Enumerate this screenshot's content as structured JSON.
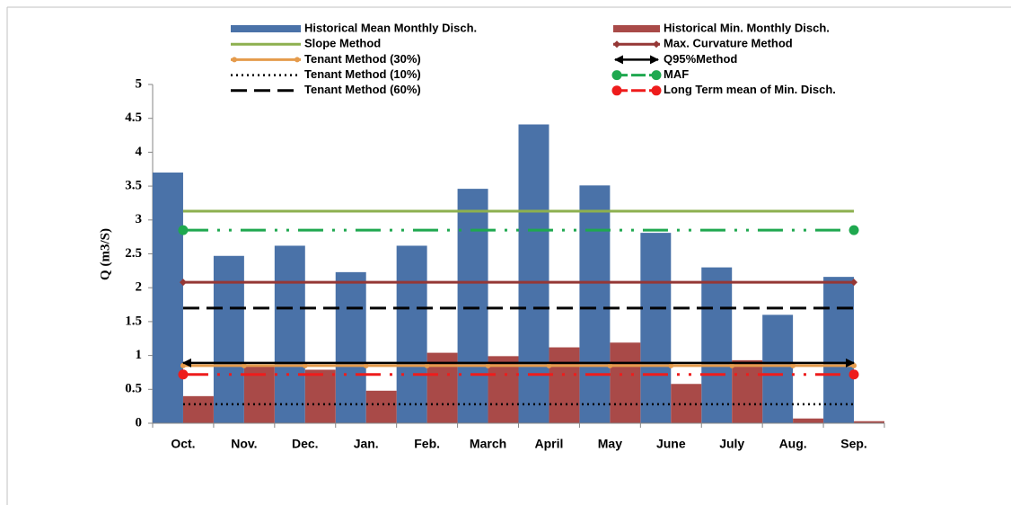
{
  "chart_data": {
    "type": "bar",
    "y_label": "Q (m3/S)",
    "categories": [
      "Oct.",
      "Nov.",
      "Dec.",
      "Jan.",
      "Feb.",
      "March",
      "April",
      "May",
      "June",
      "July",
      "Aug.",
      "Sep."
    ],
    "series": [
      {
        "name": "Historical Mean Monthly Disch.",
        "color": "#4a72a8",
        "values": [
          3.7,
          2.47,
          2.62,
          2.23,
          2.62,
          3.46,
          4.41,
          3.51,
          2.81,
          2.3,
          1.6,
          2.16
        ]
      },
      {
        "name": "Historical Min. Monthly Disch.",
        "color": "#a94a48",
        "values": [
          0.4,
          0.84,
          0.79,
          0.48,
          1.04,
          0.99,
          1.12,
          1.19,
          0.58,
          0.93,
          0.07,
          0.03
        ]
      }
    ],
    "lines": [
      {
        "name": "Slope Method",
        "color": "#8db04f",
        "style": "solid",
        "value": 3.13
      },
      {
        "name": "Max. Curvature Method",
        "color": "#953735",
        "style": "diamond",
        "value": 2.08
      },
      {
        "name": "Tenant Method (30%)",
        "color": "#e59b4c",
        "style": "circle",
        "value": 0.85
      },
      {
        "name": "Q95%Method",
        "color": "#000000",
        "style": "arrow",
        "value": 0.89
      },
      {
        "name": "Tenant Method (10%)",
        "color": "#000000",
        "style": "dotted",
        "value": 0.28
      },
      {
        "name": "MAF",
        "color": "#1fa84f",
        "style": "dash-dot-circle",
        "value": 2.85
      },
      {
        "name": "Tenant Method (60%)",
        "color": "#000000",
        "style": "dashed",
        "value": 1.7
      },
      {
        "name": "Long Term mean of Min. Disch.",
        "color": "#ee1c1c",
        "style": "dash-dot-circle",
        "value": 0.72
      }
    ],
    "ylim": [
      0,
      5
    ],
    "yticks": [
      0,
      0.5,
      1,
      1.5,
      2,
      2.5,
      3,
      3.5,
      4,
      4.5,
      5
    ]
  }
}
